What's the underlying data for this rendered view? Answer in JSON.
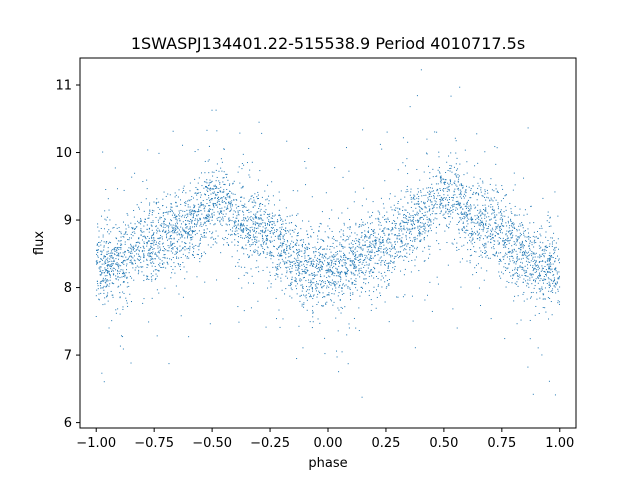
{
  "chart_data": {
    "type": "scatter",
    "title": "1SWASPJ134401.22-515538.9 Period 4010717.5s",
    "xlabel": "phase",
    "ylabel": "flux",
    "xlim": [
      -1.07,
      1.07
    ],
    "ylim": [
      5.92,
      11.4
    ],
    "xticks": [
      -1.0,
      -0.75,
      -0.5,
      -0.25,
      0.0,
      0.25,
      0.5,
      0.75,
      1.0
    ],
    "xtick_labels": [
      "−1.00",
      "−0.75",
      "−0.50",
      "−0.25",
      "0.00",
      "0.25",
      "0.50",
      "0.75",
      "1.00"
    ],
    "yticks": [
      6,
      7,
      8,
      9,
      10,
      11
    ],
    "ytick_labels": [
      "6",
      "7",
      "8",
      "9",
      "10",
      "11"
    ],
    "grid": false,
    "legend": "none",
    "marker_color": "#1f77b4",
    "series": [
      {
        "trend_phase": [
          -1.0,
          -0.9,
          -0.8,
          -0.7,
          -0.6,
          -0.5,
          -0.45,
          -0.4,
          -0.3,
          -0.2,
          -0.1,
          0.0,
          0.1,
          0.2,
          0.3,
          0.4,
          0.5,
          0.55,
          0.6,
          0.7,
          0.8,
          0.9,
          1.0
        ],
        "trend_flux": [
          8.3,
          8.4,
          8.6,
          8.8,
          8.9,
          9.2,
          9.3,
          9.0,
          8.9,
          8.6,
          8.3,
          8.2,
          8.35,
          8.55,
          8.8,
          9.0,
          9.3,
          9.3,
          9.0,
          8.9,
          8.6,
          8.35,
          8.25
        ]
      }
    ]
  }
}
